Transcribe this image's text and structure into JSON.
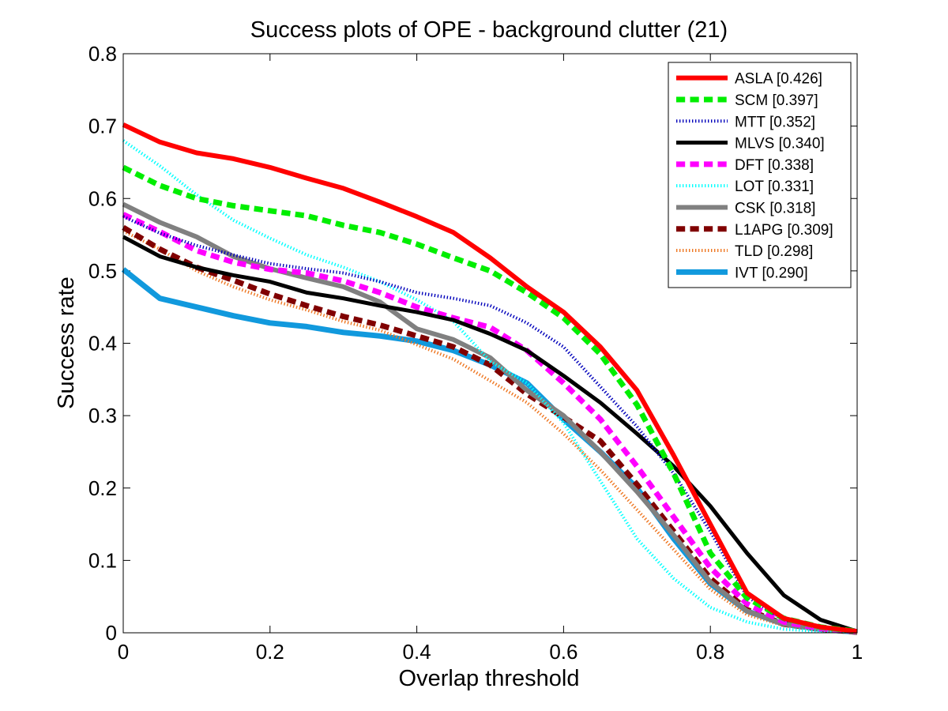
{
  "chart_data": {
    "type": "line",
    "title": "Success plots of OPE - background clutter (21)",
    "xlabel": "Overlap threshold",
    "ylabel": "Success rate",
    "xlim": [
      0,
      1
    ],
    "ylim": [
      0,
      0.8
    ],
    "xticks": [
      0,
      0.2,
      0.4,
      0.6,
      0.8,
      1
    ],
    "xtick_labels": [
      "0",
      "0.2",
      "0.4",
      "0.6",
      "0.8",
      "1"
    ],
    "yticks": [
      0,
      0.1,
      0.2,
      0.3,
      0.4,
      0.5,
      0.6,
      0.7,
      0.8
    ],
    "ytick_labels": [
      "0",
      "0.1",
      "0.2",
      "0.3",
      "0.4",
      "0.5",
      "0.6",
      "0.7",
      "0.8"
    ],
    "grid": false,
    "legend_position": "top-right",
    "x": [
      0,
      0.05,
      0.1,
      0.15,
      0.2,
      0.25,
      0.3,
      0.35,
      0.4,
      0.45,
      0.5,
      0.55,
      0.6,
      0.65,
      0.7,
      0.75,
      0.8,
      0.85,
      0.9,
      0.95,
      1
    ],
    "series": [
      {
        "name": "ASLA [0.426]",
        "color": "#ff0000",
        "style": "solid",
        "width": 6,
        "values": [
          0.702,
          0.678,
          0.663,
          0.655,
          0.643,
          0.628,
          0.614,
          0.595,
          0.575,
          0.553,
          0.518,
          0.478,
          0.443,
          0.395,
          0.335,
          0.245,
          0.15,
          0.055,
          0.02,
          0.008,
          0.002
        ]
      },
      {
        "name": "SCM [0.397]",
        "color": "#00ee00",
        "style": "dash",
        "width": 7,
        "values": [
          0.643,
          0.618,
          0.6,
          0.59,
          0.583,
          0.576,
          0.563,
          0.553,
          0.537,
          0.518,
          0.5,
          0.47,
          0.435,
          0.385,
          0.315,
          0.22,
          0.11,
          0.048,
          0.02,
          0.008,
          0.002
        ]
      },
      {
        "name": "MTT [0.352]",
        "color": "#0000bb",
        "style": "dot",
        "width": 4,
        "values": [
          0.575,
          0.552,
          0.535,
          0.522,
          0.51,
          0.503,
          0.497,
          0.485,
          0.47,
          0.462,
          0.452,
          0.428,
          0.395,
          0.34,
          0.285,
          0.22,
          0.14,
          0.05,
          0.018,
          0.008,
          0.002
        ]
      },
      {
        "name": "MLVS [0.340]",
        "color": "#000000",
        "style": "solid",
        "width": 5,
        "values": [
          0.547,
          0.52,
          0.505,
          0.494,
          0.485,
          0.47,
          0.462,
          0.452,
          0.443,
          0.432,
          0.413,
          0.39,
          0.355,
          0.318,
          0.275,
          0.23,
          0.175,
          0.11,
          0.052,
          0.018,
          0.002
        ]
      },
      {
        "name": "DFT [0.338]",
        "color": "#ff00ff",
        "style": "dash",
        "width": 7,
        "values": [
          0.578,
          0.554,
          0.528,
          0.512,
          0.502,
          0.497,
          0.486,
          0.47,
          0.45,
          0.435,
          0.422,
          0.39,
          0.345,
          0.295,
          0.23,
          0.16,
          0.09,
          0.04,
          0.015,
          0.006,
          0.002
        ]
      },
      {
        "name": "LOT [0.331]",
        "color": "#00ffff",
        "style": "dot",
        "width": 4,
        "values": [
          0.68,
          0.645,
          0.605,
          0.57,
          0.545,
          0.522,
          0.505,
          0.485,
          0.46,
          0.43,
          0.375,
          0.345,
          0.29,
          0.21,
          0.13,
          0.075,
          0.035,
          0.015,
          0.005,
          0.002,
          0.001
        ]
      },
      {
        "name": "CSK [0.318]",
        "color": "#808080",
        "style": "solid",
        "width": 6,
        "values": [
          0.592,
          0.567,
          0.547,
          0.52,
          0.503,
          0.49,
          0.478,
          0.457,
          0.42,
          0.405,
          0.38,
          0.335,
          0.3,
          0.25,
          0.195,
          0.135,
          0.07,
          0.03,
          0.012,
          0.005,
          0.001
        ]
      },
      {
        "name": "L1APG [0.309]",
        "color": "#800000",
        "style": "dash",
        "width": 7,
        "values": [
          0.56,
          0.53,
          0.505,
          0.487,
          0.468,
          0.452,
          0.437,
          0.425,
          0.41,
          0.395,
          0.37,
          0.33,
          0.298,
          0.265,
          0.205,
          0.14,
          0.075,
          0.032,
          0.012,
          0.005,
          0.001
        ]
      },
      {
        "name": "TLD [0.298]",
        "color": "#ee7722",
        "style": "dot",
        "width": 4,
        "values": [
          0.555,
          0.53,
          0.5,
          0.478,
          0.46,
          0.446,
          0.43,
          0.418,
          0.398,
          0.378,
          0.348,
          0.318,
          0.275,
          0.225,
          0.17,
          0.115,
          0.06,
          0.025,
          0.01,
          0.004,
          0.001
        ]
      },
      {
        "name": "IVT [0.290]",
        "color": "#1199dd",
        "style": "solid",
        "width": 7,
        "values": [
          0.502,
          0.462,
          0.45,
          0.438,
          0.428,
          0.423,
          0.415,
          0.41,
          0.403,
          0.39,
          0.37,
          0.345,
          0.295,
          0.25,
          0.2,
          0.13,
          0.068,
          0.03,
          0.012,
          0.005,
          0.001
        ]
      }
    ]
  }
}
